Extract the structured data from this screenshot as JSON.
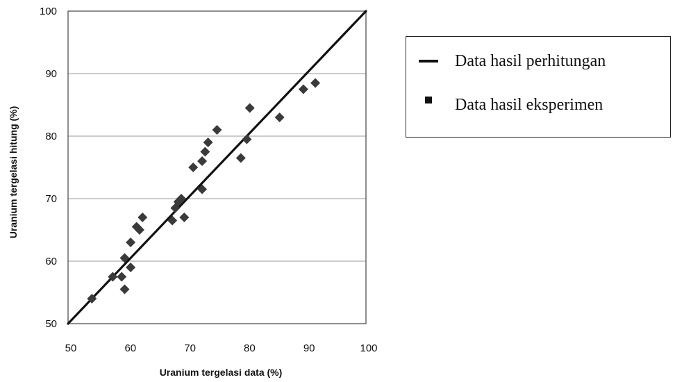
{
  "chart_data": {
    "type": "scatter",
    "title": "",
    "xlabel": "Uranium tergelasi data (%)",
    "ylabel": "Uranium tergelasi hitung (%)",
    "xlim": [
      50,
      100
    ],
    "ylim": [
      50,
      100
    ],
    "x_ticks": [
      50,
      60,
      70,
      80,
      90,
      100
    ],
    "y_ticks": [
      50,
      60,
      70,
      80,
      90,
      100
    ],
    "grid": "horizontal",
    "legend_position": "right",
    "series": [
      {
        "name": "Data hasil perhitungan",
        "type": "line",
        "color": "#111111",
        "points": [
          [
            50,
            50
          ],
          [
            100,
            100
          ]
        ]
      },
      {
        "name": "Data hasil eksperimen",
        "type": "scatter",
        "marker": "diamond",
        "color": "#3a3a3a",
        "points": [
          [
            54,
            54
          ],
          [
            57.5,
            57.5
          ],
          [
            59,
            57.5
          ],
          [
            59.5,
            55.5
          ],
          [
            59.5,
            60.5
          ],
          [
            60.5,
            59
          ],
          [
            60.5,
            63
          ],
          [
            61.5,
            65.5
          ],
          [
            62,
            65
          ],
          [
            62.5,
            67
          ],
          [
            67.5,
            66.5
          ],
          [
            68,
            68.5
          ],
          [
            68.5,
            69.5
          ],
          [
            69,
            70
          ],
          [
            69.5,
            67
          ],
          [
            71,
            75
          ],
          [
            72.5,
            76
          ],
          [
            72.5,
            71.5
          ],
          [
            73,
            77.5
          ],
          [
            73.5,
            79
          ],
          [
            75,
            81
          ],
          [
            79,
            76.5
          ],
          [
            80,
            79.5
          ],
          [
            80.5,
            84.5
          ],
          [
            85.5,
            83
          ],
          [
            89.5,
            87.5
          ],
          [
            91.5,
            88.5
          ]
        ]
      }
    ]
  },
  "legend": {
    "line_label": "Data hasil perhitungan",
    "marker_label": "Data hasil eksperimen"
  }
}
